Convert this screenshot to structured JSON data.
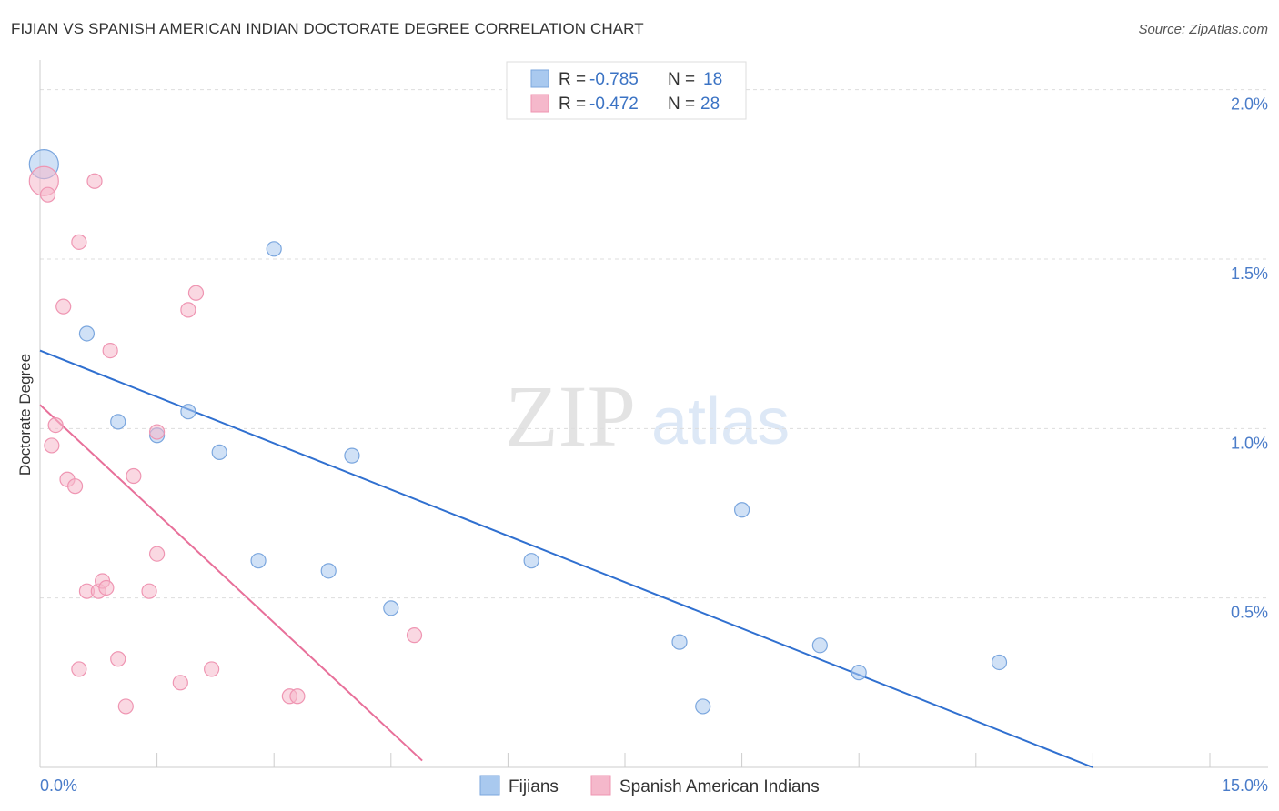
{
  "title": "FIJIAN VS SPANISH AMERICAN INDIAN DOCTORATE DEGREE CORRELATION CHART",
  "source": "Source: ZipAtlas.com",
  "watermark": {
    "zip": "ZIP",
    "atlas": "atlas"
  },
  "colors": {
    "blue": "#a9c9ef",
    "blue_stroke": "#7aa6de",
    "blue_line": "#3070d0",
    "pink": "#f5b8cb",
    "pink_stroke": "#ef95b2",
    "pink_line": "#e8709a",
    "axis_label": "#4a7cc9"
  },
  "legend": {
    "items": [
      {
        "r_label": "R = ",
        "r_value": "-0.785",
        "n_label": "N = ",
        "n_value": "18",
        "color": "#a9c9ef"
      },
      {
        "r_label": "R = ",
        "r_value": "-0.472",
        "n_label": "N = ",
        "n_value": "28",
        "color": "#f5b8cb"
      }
    ]
  },
  "bottom_legend": [
    "Fijians",
    "Spanish American Indians"
  ],
  "chart_data": {
    "type": "scatter",
    "title": "FIJIAN VS SPANISH AMERICAN INDIAN DOCTORATE DEGREE CORRELATION CHART",
    "xlabel": "",
    "ylabel": "Doctorate Degree",
    "xlim": [
      0,
      15
    ],
    "ylim": [
      0,
      2.05
    ],
    "x_tick_labels": [
      "0.0%",
      "15.0%"
    ],
    "y_ticks": [
      0.5,
      1.0,
      1.5,
      2.0
    ],
    "y_tick_labels": [
      "0.5%",
      "1.0%",
      "1.5%",
      "2.0%"
    ],
    "grid": true,
    "series": [
      {
        "name": "Fijians",
        "color": "#a9c9ef",
        "points": [
          {
            "x": 0.05,
            "y": 1.78,
            "big": true
          },
          {
            "x": 3.0,
            "y": 1.53
          },
          {
            "x": 0.6,
            "y": 1.28
          },
          {
            "x": 1.0,
            "y": 1.02
          },
          {
            "x": 1.5,
            "y": 0.98
          },
          {
            "x": 1.9,
            "y": 1.05
          },
          {
            "x": 2.3,
            "y": 0.93
          },
          {
            "x": 4.0,
            "y": 0.92
          },
          {
            "x": 2.8,
            "y": 0.61
          },
          {
            "x": 3.7,
            "y": 0.58
          },
          {
            "x": 4.5,
            "y": 0.47
          },
          {
            "x": 6.3,
            "y": 0.61
          },
          {
            "x": 9.0,
            "y": 0.76
          },
          {
            "x": 8.2,
            "y": 0.37
          },
          {
            "x": 8.5,
            "y": 0.18
          },
          {
            "x": 10.0,
            "y": 0.36
          },
          {
            "x": 10.5,
            "y": 0.28
          },
          {
            "x": 12.3,
            "y": 0.31
          }
        ],
        "trend": {
          "x": [
            0,
            13.5
          ],
          "y": [
            1.23,
            0.0
          ]
        }
      },
      {
        "name": "Spanish American Indians",
        "color": "#f5b8cb",
        "points": [
          {
            "x": 0.05,
            "y": 1.73,
            "big": true
          },
          {
            "x": 0.1,
            "y": 1.69
          },
          {
            "x": 0.7,
            "y": 1.73
          },
          {
            "x": 0.5,
            "y": 1.55
          },
          {
            "x": 0.3,
            "y": 1.36
          },
          {
            "x": 1.9,
            "y": 1.35
          },
          {
            "x": 2.0,
            "y": 1.4
          },
          {
            "x": 0.9,
            "y": 1.23
          },
          {
            "x": 0.2,
            "y": 1.01
          },
          {
            "x": 0.15,
            "y": 0.95
          },
          {
            "x": 1.5,
            "y": 0.99
          },
          {
            "x": 0.35,
            "y": 0.85
          },
          {
            "x": 0.45,
            "y": 0.83
          },
          {
            "x": 1.2,
            "y": 0.86
          },
          {
            "x": 1.5,
            "y": 0.63
          },
          {
            "x": 0.6,
            "y": 0.52
          },
          {
            "x": 0.75,
            "y": 0.52
          },
          {
            "x": 0.8,
            "y": 0.55
          },
          {
            "x": 0.85,
            "y": 0.53
          },
          {
            "x": 1.4,
            "y": 0.52
          },
          {
            "x": 4.8,
            "y": 0.39
          },
          {
            "x": 1.0,
            "y": 0.32
          },
          {
            "x": 0.5,
            "y": 0.29
          },
          {
            "x": 2.2,
            "y": 0.29
          },
          {
            "x": 1.8,
            "y": 0.25
          },
          {
            "x": 3.2,
            "y": 0.21
          },
          {
            "x": 3.3,
            "y": 0.21
          },
          {
            "x": 1.1,
            "y": 0.18
          }
        ],
        "trend": {
          "x": [
            0,
            4.9
          ],
          "y": [
            1.07,
            0.02
          ]
        }
      }
    ]
  }
}
